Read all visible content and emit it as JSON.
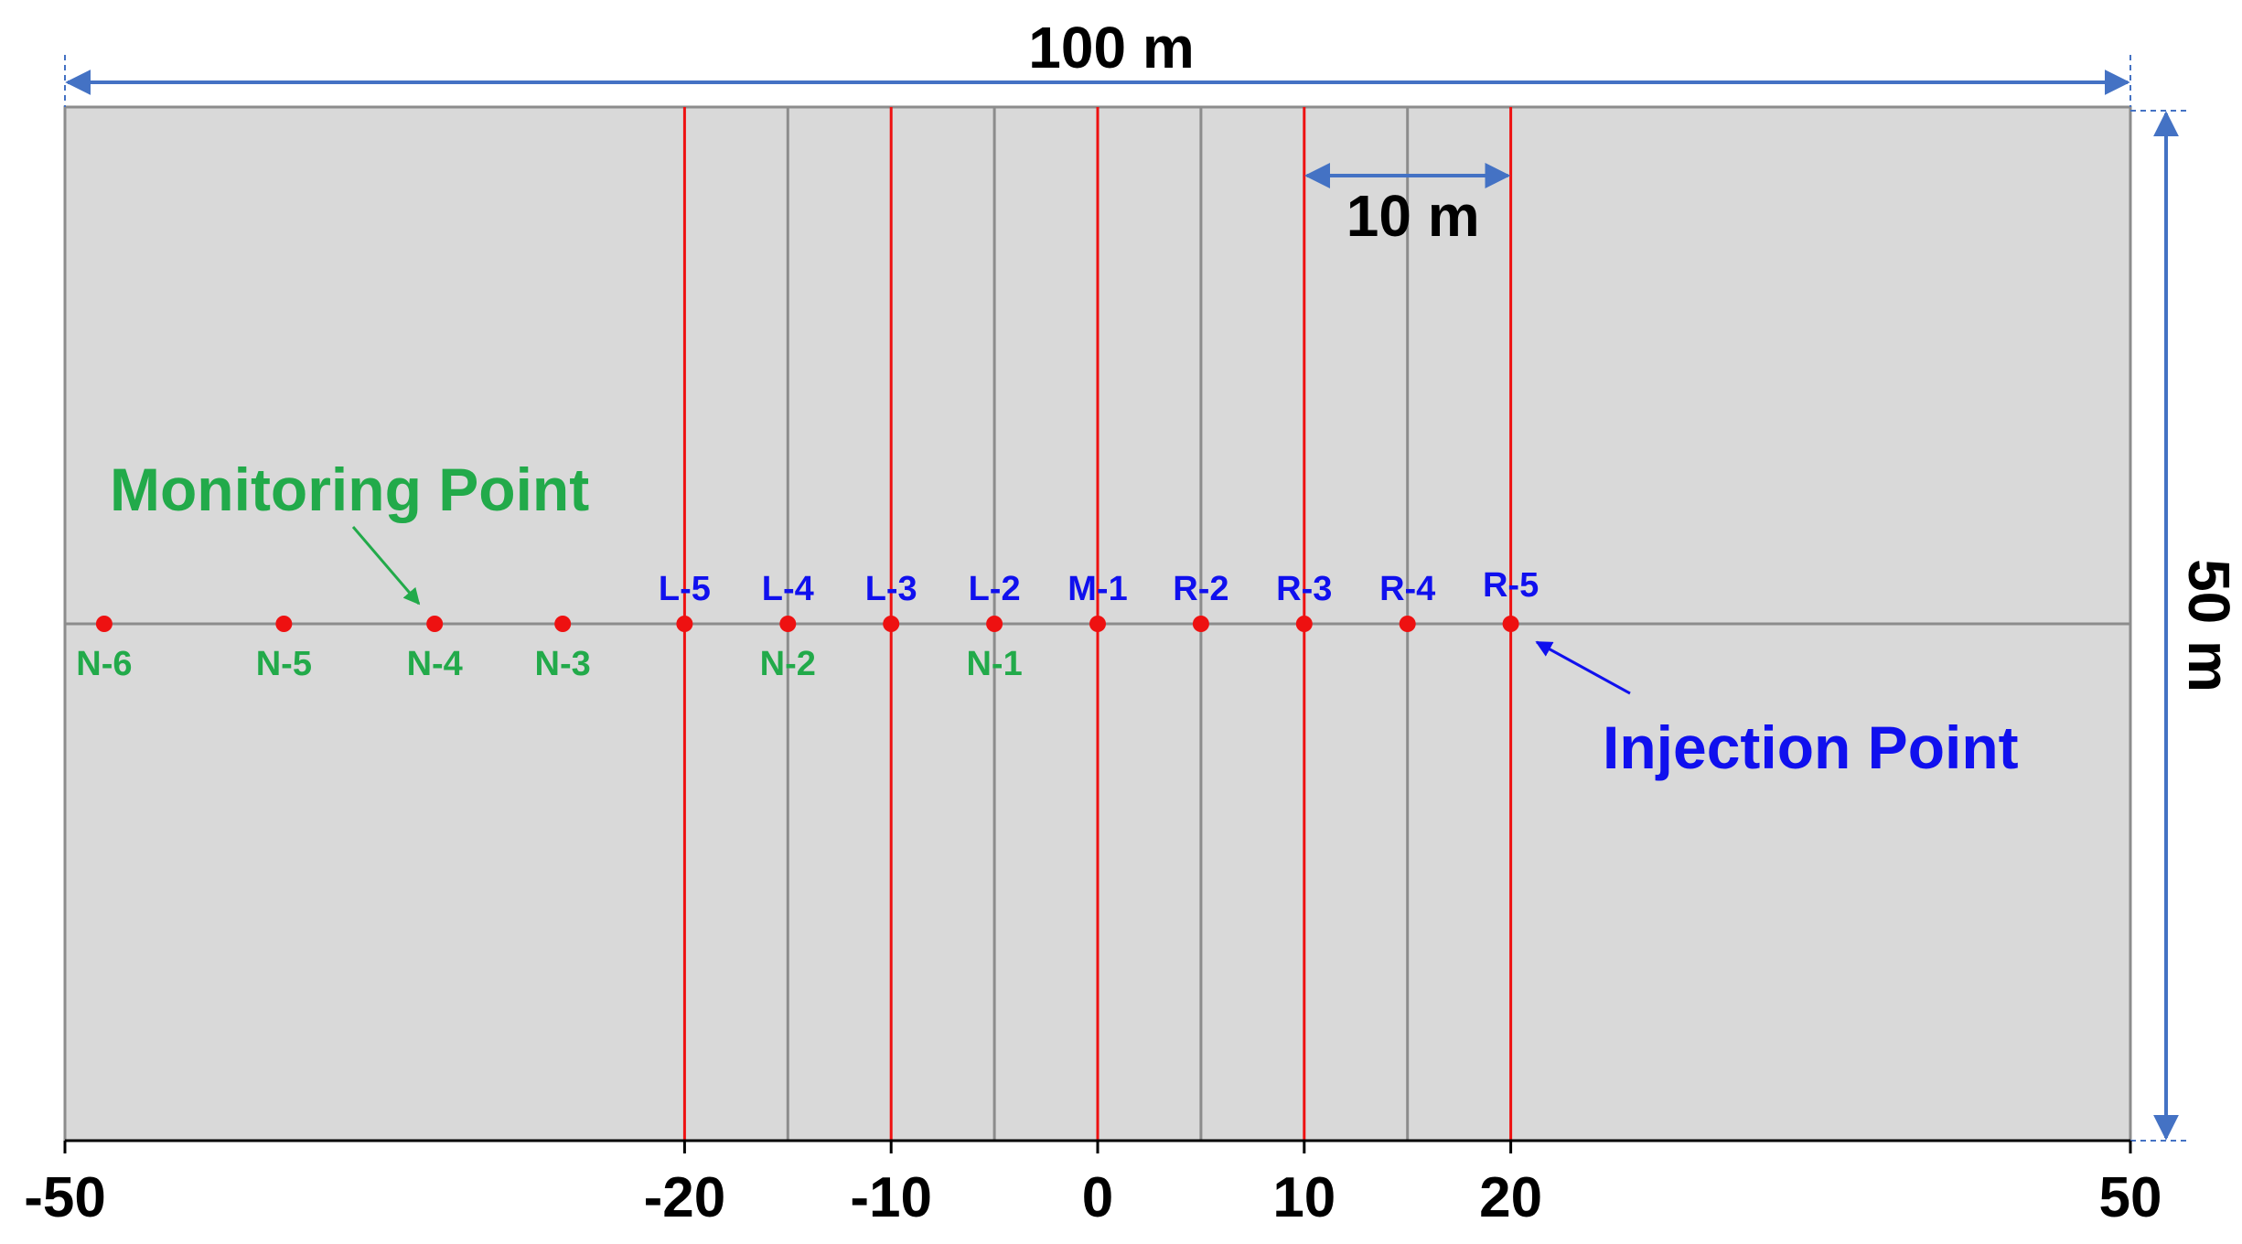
{
  "colors": {
    "domain_fill": "#d9d9d9",
    "domain_border": "#8c8c8c",
    "red_line": "#ee1111",
    "point": "#ee1111",
    "blue": "#1010ee",
    "green": "#22aa4a",
    "dimension_arrow": "#4472c4"
  },
  "domain": {
    "x_range": [
      -50,
      50
    ],
    "width_label": "100 m",
    "height_label": "50 m",
    "spacing_label": "10 m",
    "spacing_range": [
      10,
      20
    ],
    "grey_lines_x": [
      -15,
      -5,
      5,
      15
    ],
    "red_lines_x": [
      -20,
      -10,
      0,
      10,
      20
    ]
  },
  "axis": {
    "ticks": [
      {
        "value": -50,
        "label": "-50"
      },
      {
        "value": -20,
        "label": "-20"
      },
      {
        "value": -10,
        "label": "-10"
      },
      {
        "value": 0,
        "label": "0"
      },
      {
        "value": 10,
        "label": "10"
      },
      {
        "value": 20,
        "label": "20"
      },
      {
        "value": 50,
        "label": "50"
      }
    ]
  },
  "blue_points": [
    {
      "label": "L-5",
      "x": -20
    },
    {
      "label": "L-4",
      "x": -15
    },
    {
      "label": "L-3",
      "x": -10
    },
    {
      "label": "L-2",
      "x": -5
    },
    {
      "label": "M-1",
      "x": 0
    },
    {
      "label": "R-2",
      "x": 5
    },
    {
      "label": "R-3",
      "x": 10
    },
    {
      "label": "R-4",
      "x": 15
    },
    {
      "label": "R-5",
      "x": 20
    }
  ],
  "green_points": [
    {
      "label": "N-6",
      "x": -48.1,
      "dot": true
    },
    {
      "label": "N-5",
      "x": -39.4,
      "dot": true
    },
    {
      "label": "N-4",
      "x": -32.1,
      "dot": true
    },
    {
      "label": "N-3",
      "x": -25.9,
      "dot": true
    },
    {
      "label": "N-2",
      "x": -15,
      "dot": false
    },
    {
      "label": "N-1",
      "x": -5,
      "dot": false
    }
  ],
  "annotations": {
    "monitoring": "Monitoring Point",
    "injection": "Injection Point"
  }
}
